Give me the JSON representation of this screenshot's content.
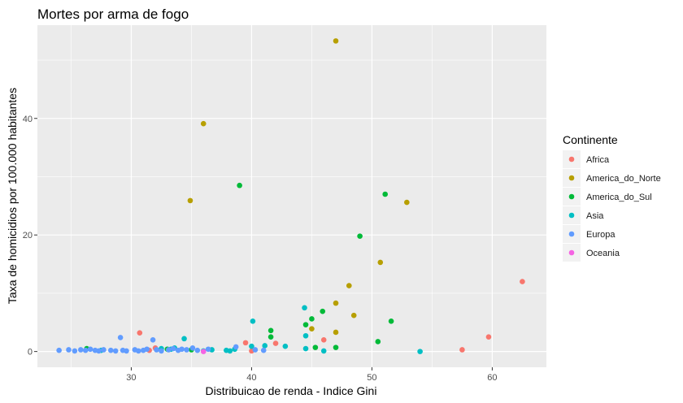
{
  "chart_data": {
    "type": "scatter",
    "title": "Mortes por arma de fogo",
    "xlabel": "Distribuicao de renda - Indice Gini",
    "ylabel": "Taxa de homicidios por 100.000 habitantes",
    "xlim": [
      22.2,
      64.5
    ],
    "ylim": [
      -2.7,
      56
    ],
    "x_ticks": [
      30,
      40,
      50,
      60
    ],
    "y_ticks": [
      0,
      20,
      40
    ],
    "grid": true,
    "panel_background": "#ebebeb",
    "legend": {
      "title": "Continente",
      "position": "right"
    },
    "series": [
      {
        "name": "Africa",
        "color": "#f8766d",
        "points": [
          [
            30.7,
            3.2
          ],
          [
            31.5,
            0.2
          ],
          [
            32.0,
            0.6
          ],
          [
            39.5,
            1.5
          ],
          [
            40.0,
            0.1
          ],
          [
            42.0,
            1.4
          ],
          [
            46.0,
            2.0
          ],
          [
            57.5,
            0.3
          ],
          [
            59.7,
            2.5
          ],
          [
            62.5,
            12.0
          ]
        ]
      },
      {
        "name": "America_do_Norte",
        "color": "#b79f00",
        "points": [
          [
            34.9,
            25.9
          ],
          [
            36.0,
            39.1
          ],
          [
            45.0,
            3.9
          ],
          [
            47.0,
            53.3
          ],
          [
            47.0,
            8.3
          ],
          [
            47.0,
            3.3
          ],
          [
            48.1,
            11.3
          ],
          [
            48.5,
            6.2
          ],
          [
            50.7,
            15.3
          ],
          [
            52.9,
            25.6
          ]
        ]
      },
      {
        "name": "America_do_Sul",
        "color": "#00ba38",
        "points": [
          [
            26.3,
            0.5
          ],
          [
            33.0,
            0.4
          ],
          [
            35.0,
            0.3
          ],
          [
            39.0,
            28.5
          ],
          [
            41.6,
            3.6
          ],
          [
            41.6,
            2.5
          ],
          [
            44.5,
            4.6
          ],
          [
            45.0,
            5.6
          ],
          [
            45.3,
            0.7
          ],
          [
            45.9,
            6.9
          ],
          [
            47.0,
            0.7
          ],
          [
            49.0,
            19.8
          ],
          [
            50.5,
            1.7
          ],
          [
            51.1,
            27.0
          ],
          [
            51.6,
            5.2
          ]
        ]
      },
      {
        "name": "Asia",
        "color": "#00bfc4",
        "points": [
          [
            27.5,
            0.2
          ],
          [
            32.5,
            0.5
          ],
          [
            33.3,
            0.4
          ],
          [
            33.6,
            0.6
          ],
          [
            34.4,
            2.2
          ],
          [
            36.0,
            0.1
          ],
          [
            36.7,
            0.3
          ],
          [
            37.9,
            0.2
          ],
          [
            38.2,
            0.1
          ],
          [
            38.6,
            0.4
          ],
          [
            40.0,
            0.9
          ],
          [
            40.1,
            5.2
          ],
          [
            41.1,
            1.0
          ],
          [
            42.8,
            0.9
          ],
          [
            44.4,
            7.5
          ],
          [
            44.5,
            2.7
          ],
          [
            44.5,
            0.5
          ],
          [
            46.0,
            0.1
          ],
          [
            54.0,
            0.0
          ]
        ]
      },
      {
        "name": "Europa",
        "color": "#619cff",
        "points": [
          [
            24.0,
            0.2
          ],
          [
            24.8,
            0.3
          ],
          [
            25.3,
            0.1
          ],
          [
            25.8,
            0.3
          ],
          [
            26.2,
            0.2
          ],
          [
            26.6,
            0.4
          ],
          [
            27.0,
            0.2
          ],
          [
            27.3,
            0.1
          ],
          [
            27.7,
            0.3
          ],
          [
            28.3,
            0.2
          ],
          [
            28.7,
            0.1
          ],
          [
            29.1,
            2.4
          ],
          [
            29.3,
            0.2
          ],
          [
            29.6,
            0.1
          ],
          [
            30.3,
            0.3
          ],
          [
            30.6,
            0.1
          ],
          [
            31.0,
            0.2
          ],
          [
            31.3,
            0.4
          ],
          [
            31.8,
            2.0
          ],
          [
            32.1,
            0.3
          ],
          [
            32.5,
            0.1
          ],
          [
            33.1,
            0.3
          ],
          [
            33.5,
            0.5
          ],
          [
            33.9,
            0.2
          ],
          [
            34.2,
            0.4
          ],
          [
            34.6,
            0.3
          ],
          [
            35.1,
            0.6
          ],
          [
            35.5,
            0.2
          ],
          [
            36.4,
            0.4
          ],
          [
            38.7,
            0.8
          ],
          [
            40.3,
            0.3
          ],
          [
            41.0,
            0.2
          ]
        ]
      },
      {
        "name": "Oceania",
        "color": "#f564e3",
        "points": [
          [
            36.0,
            0.0
          ]
        ]
      }
    ]
  }
}
